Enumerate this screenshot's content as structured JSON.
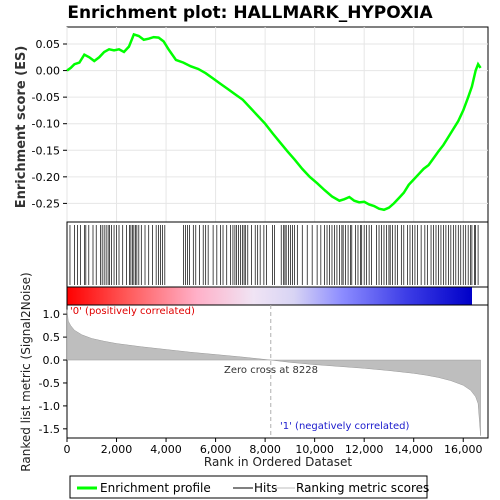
{
  "chart_data": {
    "type": "line",
    "title": "Enrichment plot: HALLMARK_HYPOXIA",
    "xlabel": "Rank in Ordered Dataset",
    "ylabel_top": "Enrichment score (ES)",
    "ylabel_bottom": "Ranked list metric (Signal2Noise)",
    "x_ticks": [
      0,
      2000,
      4000,
      6000,
      8000,
      10000,
      12000,
      14000,
      16000
    ],
    "x_tick_labels": [
      "0",
      "2,000",
      "4,000",
      "6,000",
      "8,000",
      "10,000",
      "12,000",
      "14,000",
      "16,000"
    ],
    "xlim": [
      0,
      17000
    ],
    "es_ylim": [
      -0.285,
      0.082
    ],
    "es_ticks": [
      0.05,
      0.0,
      -0.05,
      -0.1,
      -0.15,
      -0.2,
      -0.25
    ],
    "es_tick_labels": [
      "0.05",
      "0.00",
      "-0.05",
      "-0.10",
      "-0.15",
      "-0.20",
      "-0.25"
    ],
    "metric_ylim": [
      -1.7,
      1.2
    ],
    "metric_ticks": [
      1.0,
      0.5,
      0.0,
      -0.5,
      -1.0,
      -1.5
    ],
    "metric_tick_labels": [
      "1.0",
      "0.5",
      "0.0",
      "-0.5",
      "-1.0",
      "-1.5"
    ],
    "n_genes": 16700,
    "series": [
      {
        "name": "Enrichment profile",
        "color": "#00ff00",
        "x": [
          0,
          150,
          300,
          500,
          700,
          900,
          1100,
          1300,
          1500,
          1700,
          1900,
          2100,
          2300,
          2500,
          2700,
          2900,
          3100,
          3300,
          3500,
          3700,
          3900,
          4100,
          4400,
          4700,
          5000,
          5300,
          5600,
          5900,
          6200,
          6500,
          6800,
          7100,
          7400,
          7700,
          8000,
          8300,
          8600,
          8900,
          9200,
          9500,
          9800,
          10100,
          10400,
          10700,
          11000,
          11200,
          11400,
          11600,
          11800,
          12000,
          12200,
          12400,
          12600,
          12800,
          13000,
          13200,
          13400,
          13600,
          13800,
          14000,
          14200,
          14400,
          14600,
          14800,
          15000,
          15200,
          15400,
          15600,
          15800,
          16000,
          16200,
          16350,
          16500,
          16600,
          16700
        ],
        "y": [
          0.0,
          0.005,
          0.012,
          0.015,
          0.03,
          0.025,
          0.018,
          0.025,
          0.035,
          0.04,
          0.038,
          0.04,
          0.035,
          0.045,
          0.068,
          0.065,
          0.058,
          0.06,
          0.063,
          0.062,
          0.055,
          0.04,
          0.02,
          0.015,
          0.008,
          0.003,
          -0.005,
          -0.015,
          -0.025,
          -0.035,
          -0.045,
          -0.055,
          -0.07,
          -0.085,
          -0.1,
          -0.118,
          -0.135,
          -0.152,
          -0.168,
          -0.185,
          -0.2,
          -0.212,
          -0.225,
          -0.237,
          -0.245,
          -0.242,
          -0.238,
          -0.245,
          -0.248,
          -0.247,
          -0.252,
          -0.255,
          -0.26,
          -0.262,
          -0.258,
          -0.25,
          -0.24,
          -0.23,
          -0.215,
          -0.205,
          -0.195,
          -0.185,
          -0.178,
          -0.165,
          -0.152,
          -0.14,
          -0.125,
          -0.11,
          -0.095,
          -0.075,
          -0.05,
          -0.03,
          0.0,
          0.012,
          0.005
        ]
      }
    ],
    "hits": [
      120,
      300,
      420,
      540,
      700,
      760,
      880,
      1050,
      1180,
      1350,
      1420,
      1500,
      1580,
      1660,
      1720,
      1800,
      1900,
      2000,
      2100,
      2250,
      2400,
      2520,
      2580,
      2640,
      2700,
      2760,
      2820,
      2900,
      3000,
      3150,
      3300,
      3450,
      3600,
      3700,
      3780,
      3850,
      3950,
      4700,
      4780,
      4860,
      4950,
      5100,
      5200,
      5350,
      5500,
      5600,
      5700,
      5900,
      6050,
      6200,
      6300,
      6450,
      6600,
      6700,
      6780,
      6850,
      6920,
      7000,
      7080,
      7150,
      7200,
      7300,
      7450,
      7600,
      7700,
      7800,
      7950,
      8050,
      8300,
      8380,
      8650,
      8750,
      8800,
      8850,
      8950,
      9020,
      9100,
      9180,
      9300,
      9500,
      9700,
      9900,
      10100,
      10250,
      10400,
      10500,
      10600,
      10700,
      10800,
      10900,
      11000,
      11100,
      11150,
      11250,
      11350,
      11450,
      11500,
      11650,
      11750,
      11850,
      11900,
      12000,
      12100,
      12200,
      12300,
      12500,
      12600,
      12700,
      12800,
      12900,
      13000,
      13050,
      13150,
      13250,
      13350,
      13500,
      13600,
      13750,
      13850,
      13950,
      14050,
      14150,
      14300,
      14450,
      14550,
      14700,
      14800,
      14900,
      15000,
      15100,
      15200,
      15300,
      15400,
      15500,
      15600,
      15700,
      15800,
      15900,
      16000,
      16100,
      16200,
      16300,
      16350,
      16450,
      16500,
      16600
    ],
    "metric_profile": {
      "x": [
        0,
        50,
        150,
        300,
        600,
        1000,
        1500,
        2000,
        3000,
        4000,
        5000,
        6000,
        7000,
        8228,
        9000,
        10000,
        11000,
        12000,
        13000,
        14000,
        14500,
        15000,
        15500,
        16000,
        16300,
        16500,
        16600,
        16650,
        16700
      ],
      "y": [
        1.1,
        0.85,
        0.75,
        0.65,
        0.55,
        0.47,
        0.41,
        0.36,
        0.29,
        0.23,
        0.17,
        0.12,
        0.07,
        0.0,
        -0.05,
        -0.1,
        -0.14,
        -0.18,
        -0.23,
        -0.29,
        -0.33,
        -0.38,
        -0.45,
        -0.55,
        -0.66,
        -0.8,
        -0.95,
        -1.3,
        -1.65
      ]
    },
    "zero_cross": 8228,
    "annotations": {
      "zero_cross": "Zero cross at 8228",
      "positive": "'0' (positively correlated)",
      "negative": "'1' (negatively correlated)"
    },
    "legend": [
      "Enrichment profile",
      "Hits",
      "Ranking metric scores"
    ],
    "colors": {
      "es_line": "#00ff00",
      "hit": "#000000",
      "metric_fill": "#bebebe",
      "positive": "#ff0000",
      "negative": "#0000ff"
    }
  }
}
